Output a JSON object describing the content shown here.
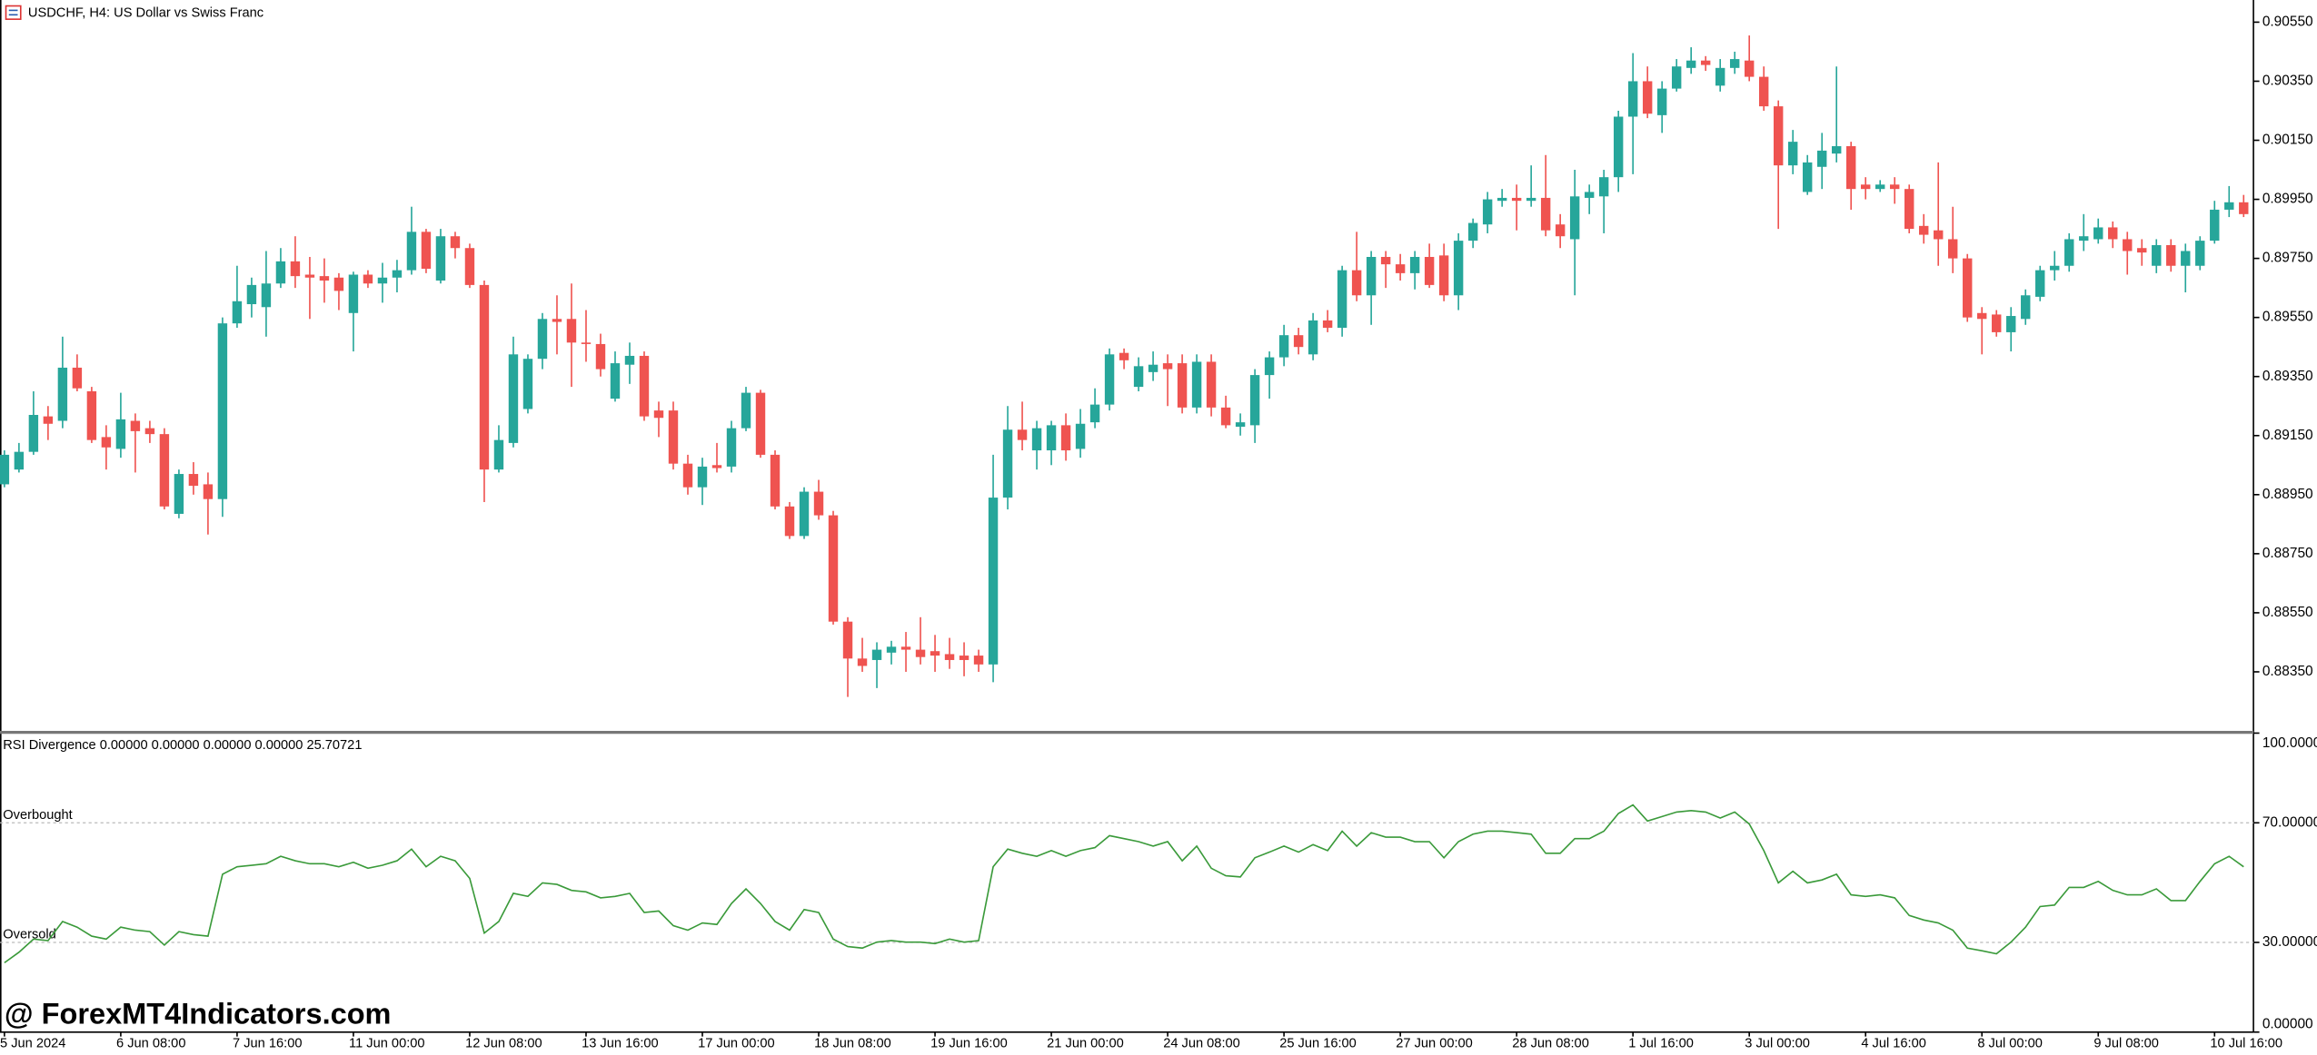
{
  "watermark": "@ ForexMT4Indicators.com",
  "chart_data": [
    {
      "type": "candlestick",
      "title": "USDCHF, H4:  US Dollar vs Swiss Franc",
      "categories": [
        "5 Jun 2024",
        null,
        null,
        null,
        null,
        null,
        null,
        null,
        "6 Jun 08:00",
        null,
        null,
        null,
        null,
        null,
        null,
        null,
        "7 Jun 16:00",
        null,
        null,
        null,
        null,
        null,
        null,
        null,
        "11 Jun 00:00",
        null,
        null,
        null,
        null,
        null,
        null,
        null,
        "12 Jun 08:00",
        null,
        null,
        null,
        null,
        null,
        null,
        null,
        "13 Jun 16:00",
        null,
        null,
        null,
        null,
        null,
        null,
        null,
        "17 Jun 00:00",
        null,
        null,
        null,
        null,
        null,
        null,
        null,
        "18 Jun 08:00",
        null,
        null,
        null,
        null,
        null,
        null,
        null,
        "19 Jun 16:00",
        null,
        null,
        null,
        null,
        null,
        null,
        null,
        "21 Jun 00:00",
        null,
        null,
        null,
        null,
        null,
        null,
        null,
        "24 Jun 08:00",
        null,
        null,
        null,
        null,
        null,
        null,
        null,
        "25 Jun 16:00",
        null,
        null,
        null,
        null,
        null,
        null,
        null,
        "27 Jun 00:00",
        null,
        null,
        null,
        null,
        null,
        null,
        null,
        "28 Jun 08:00",
        null,
        null,
        null,
        null,
        null,
        null,
        null,
        "1 Jul 16:00",
        null,
        null,
        null,
        null,
        null,
        null,
        null,
        "3 Jul 00:00",
        null,
        null,
        null,
        null,
        null,
        null,
        null,
        "4 Jul 16:00",
        null,
        null,
        null,
        null,
        null,
        null,
        null,
        "8 Jul 00:00",
        null,
        null,
        null,
        null,
        null,
        null,
        null,
        "9 Jul 08:00",
        null,
        null,
        null,
        null,
        null,
        null,
        null,
        "10 Jul 16:00",
        null,
        null
      ],
      "open": [
        0.88985,
        0.89035,
        0.89095,
        0.89215,
        0.892,
        0.8938,
        0.893,
        0.89145,
        0.89105,
        0.892,
        0.89175,
        0.89155,
        0.88885,
        0.8902,
        0.88985,
        0.88935,
        0.8953,
        0.89595,
        0.89585,
        0.89665,
        0.8974,
        0.89695,
        0.8969,
        0.89685,
        0.89565,
        0.89695,
        0.89665,
        0.89685,
        0.8971,
        0.8984,
        0.89675,
        0.89825,
        0.89785,
        0.8966,
        0.89035,
        0.89125,
        0.8924,
        0.8941,
        0.89545,
        0.89545,
        0.89465,
        0.8946,
        0.89275,
        0.8939,
        0.8942,
        0.89235,
        0.89235,
        0.89055,
        0.88975,
        0.8905,
        0.89045,
        0.89175,
        0.89295,
        0.89085,
        0.8891,
        0.8881,
        0.8896,
        0.8888,
        0.8852,
        0.88395,
        0.8839,
        0.88415,
        0.88435,
        0.88425,
        0.8842,
        0.8841,
        0.88405,
        0.88405,
        0.88375,
        0.8894,
        0.8917,
        0.891,
        0.891,
        0.89185,
        0.89105,
        0.89195,
        0.89255,
        0.8943,
        0.89315,
        0.89365,
        0.89395,
        0.89395,
        0.89245,
        0.894,
        0.89245,
        0.8918,
        0.89185,
        0.89355,
        0.89415,
        0.8949,
        0.89425,
        0.8954,
        0.89515,
        0.8971,
        0.89625,
        0.89755,
        0.8973,
        0.897,
        0.89755,
        0.8976,
        0.89625,
        0.8981,
        0.89865,
        0.89945,
        0.89955,
        0.89945,
        0.89955,
        0.89865,
        0.89815,
        0.89955,
        0.8996,
        0.90025,
        0.9023,
        0.9035,
        0.90235,
        0.90325,
        0.90395,
        0.9042,
        0.90335,
        0.90395,
        0.9042,
        0.90365,
        0.90265,
        0.90065,
        0.89975,
        0.9006,
        0.90105,
        0.9013,
        0.9,
        0.89985,
        0.9,
        0.89985,
        0.8986,
        0.89845,
        0.89815,
        0.8975,
        0.89565,
        0.8956,
        0.895,
        0.89545,
        0.8962,
        0.8971,
        0.89725,
        0.8981,
        0.89815,
        0.89855,
        0.89815,
        0.89785,
        0.89725,
        0.89795,
        0.89725,
        0.89725,
        0.8981,
        0.89915,
        0.8994
      ],
      "high": [
        0.891,
        0.89125,
        0.893,
        0.8925,
        0.89485,
        0.89425,
        0.89315,
        0.89185,
        0.89295,
        0.89225,
        0.892,
        0.89175,
        0.89035,
        0.8906,
        0.89025,
        0.8955,
        0.89725,
        0.89685,
        0.89775,
        0.89785,
        0.89825,
        0.89755,
        0.8975,
        0.897,
        0.89705,
        0.8971,
        0.89735,
        0.89745,
        0.89925,
        0.8985,
        0.8985,
        0.8984,
        0.898,
        0.89675,
        0.89185,
        0.89485,
        0.89425,
        0.89565,
        0.89625,
        0.89665,
        0.89575,
        0.89495,
        0.89435,
        0.89465,
        0.89435,
        0.89265,
        0.89265,
        0.89085,
        0.89075,
        0.89125,
        0.892,
        0.89315,
        0.89305,
        0.891,
        0.88925,
        0.88975,
        0.89,
        0.88895,
        0.88535,
        0.88465,
        0.8845,
        0.88455,
        0.88485,
        0.88535,
        0.88475,
        0.88465,
        0.8845,
        0.88425,
        0.89085,
        0.8925,
        0.89265,
        0.892,
        0.892,
        0.89225,
        0.8924,
        0.8931,
        0.89445,
        0.89445,
        0.89415,
        0.89435,
        0.89425,
        0.89425,
        0.89425,
        0.89425,
        0.89285,
        0.89225,
        0.89375,
        0.89435,
        0.89525,
        0.89515,
        0.89565,
        0.89575,
        0.89725,
        0.8984,
        0.89775,
        0.89775,
        0.89765,
        0.89775,
        0.898,
        0.898,
        0.89835,
        0.89885,
        0.89975,
        0.89985,
        0.9,
        0.90065,
        0.901,
        0.899,
        0.9005,
        0.9,
        0.9005,
        0.9025,
        0.90445,
        0.904,
        0.9035,
        0.90425,
        0.90465,
        0.90435,
        0.90425,
        0.9045,
        0.90505,
        0.904,
        0.90285,
        0.90185,
        0.901,
        0.90175,
        0.904,
        0.90145,
        0.90025,
        0.90015,
        0.90025,
        0.9,
        0.899,
        0.90075,
        0.89925,
        0.89765,
        0.89585,
        0.89575,
        0.89585,
        0.89645,
        0.89725,
        0.89775,
        0.89835,
        0.899,
        0.89885,
        0.89875,
        0.8984,
        0.89815,
        0.89815,
        0.89815,
        0.898,
        0.89825,
        0.89945,
        0.89995,
        0.89965
      ],
      "low": [
        0.88975,
        0.89025,
        0.89085,
        0.89135,
        0.89175,
        0.893,
        0.89125,
        0.89035,
        0.89075,
        0.89025,
        0.89125,
        0.889,
        0.8887,
        0.8895,
        0.88815,
        0.88875,
        0.89515,
        0.8955,
        0.89485,
        0.8965,
        0.8965,
        0.89545,
        0.896,
        0.89575,
        0.89435,
        0.8965,
        0.896,
        0.89635,
        0.89695,
        0.897,
        0.89665,
        0.8975,
        0.8965,
        0.88925,
        0.89025,
        0.8911,
        0.89225,
        0.89375,
        0.89425,
        0.89315,
        0.894,
        0.8935,
        0.89265,
        0.89325,
        0.892,
        0.89145,
        0.89035,
        0.8895,
        0.88915,
        0.89025,
        0.89025,
        0.89165,
        0.89075,
        0.889,
        0.888,
        0.888,
        0.88865,
        0.8851,
        0.88265,
        0.8835,
        0.88295,
        0.88375,
        0.8835,
        0.88375,
        0.8835,
        0.8836,
        0.88335,
        0.8835,
        0.88315,
        0.889,
        0.891,
        0.89035,
        0.8905,
        0.89065,
        0.89075,
        0.89175,
        0.89235,
        0.89375,
        0.893,
        0.89335,
        0.8925,
        0.89225,
        0.89225,
        0.89215,
        0.89175,
        0.8915,
        0.89125,
        0.89275,
        0.89385,
        0.89425,
        0.89405,
        0.895,
        0.89485,
        0.89605,
        0.89525,
        0.8965,
        0.89675,
        0.89645,
        0.8965,
        0.89605,
        0.89575,
        0.89785,
        0.89835,
        0.89925,
        0.89845,
        0.89925,
        0.89825,
        0.89785,
        0.89625,
        0.899,
        0.89835,
        0.89975,
        0.90035,
        0.90225,
        0.90175,
        0.90315,
        0.90375,
        0.90385,
        0.90315,
        0.90375,
        0.9035,
        0.9025,
        0.8985,
        0.90035,
        0.89965,
        0.89985,
        0.90075,
        0.89915,
        0.8995,
        0.89975,
        0.89935,
        0.89835,
        0.898,
        0.89725,
        0.897,
        0.89535,
        0.89425,
        0.89485,
        0.89435,
        0.89525,
        0.89605,
        0.89675,
        0.89705,
        0.89775,
        0.898,
        0.89785,
        0.89695,
        0.89725,
        0.897,
        0.89705,
        0.89635,
        0.8971,
        0.898,
        0.8989,
        0.8989
      ],
      "close": [
        0.89085,
        0.89095,
        0.8922,
        0.8919,
        0.8938,
        0.8931,
        0.89135,
        0.8911,
        0.89205,
        0.89165,
        0.89155,
        0.8891,
        0.8902,
        0.8898,
        0.88935,
        0.8953,
        0.89605,
        0.8966,
        0.89665,
        0.8974,
        0.8969,
        0.89685,
        0.89675,
        0.8964,
        0.89695,
        0.89665,
        0.89685,
        0.8971,
        0.8984,
        0.89715,
        0.89825,
        0.89785,
        0.8966,
        0.89035,
        0.89135,
        0.89425,
        0.8941,
        0.89545,
        0.89535,
        0.89465,
        0.8946,
        0.89375,
        0.89395,
        0.8942,
        0.89215,
        0.8921,
        0.89055,
        0.88975,
        0.89045,
        0.8904,
        0.89175,
        0.89295,
        0.89085,
        0.8891,
        0.8881,
        0.8896,
        0.8888,
        0.8852,
        0.88395,
        0.8837,
        0.88425,
        0.88435,
        0.88425,
        0.884,
        0.88405,
        0.8839,
        0.8839,
        0.88375,
        0.8894,
        0.8917,
        0.89135,
        0.89175,
        0.89185,
        0.891,
        0.8919,
        0.89255,
        0.89425,
        0.89405,
        0.89385,
        0.8939,
        0.89375,
        0.89245,
        0.894,
        0.89245,
        0.89185,
        0.89195,
        0.89355,
        0.89415,
        0.8949,
        0.8945,
        0.8954,
        0.89515,
        0.8971,
        0.89625,
        0.89755,
        0.8973,
        0.897,
        0.89755,
        0.8966,
        0.89625,
        0.8981,
        0.8987,
        0.8995,
        0.89955,
        0.89945,
        0.89955,
        0.89845,
        0.89825,
        0.8996,
        0.89975,
        0.90025,
        0.9023,
        0.9035,
        0.9024,
        0.90325,
        0.904,
        0.9042,
        0.90405,
        0.90395,
        0.90425,
        0.90365,
        0.90265,
        0.90065,
        0.90145,
        0.90075,
        0.90115,
        0.9013,
        0.89985,
        0.89985,
        0.9,
        0.89985,
        0.8985,
        0.8983,
        0.89815,
        0.8975,
        0.8955,
        0.89545,
        0.895,
        0.89555,
        0.89625,
        0.8971,
        0.89725,
        0.89815,
        0.89825,
        0.89855,
        0.89815,
        0.89775,
        0.8977,
        0.89795,
        0.89725,
        0.89775,
        0.8981,
        0.89915,
        0.8994,
        0.899
      ],
      "up_color": "#26a69a",
      "down_color": "#ef5350",
      "ylim": [
        0.8815,
        0.90625
      ],
      "yticks": [
        {
          "value": 0.8835,
          "label": "0.88350"
        },
        {
          "value": 0.8855,
          "label": "0.88550"
        },
        {
          "value": 0.8875,
          "label": "0.88750"
        },
        {
          "value": 0.8895,
          "label": "0.88950"
        },
        {
          "value": 0.8915,
          "label": "0.89150"
        },
        {
          "value": 0.8935,
          "label": "0.89350"
        },
        {
          "value": 0.8955,
          "label": "0.89550"
        },
        {
          "value": 0.8975,
          "label": "0.89750"
        },
        {
          "value": 0.8995,
          "label": "0.89950"
        },
        {
          "value": 0.9015,
          "label": "0.90150"
        },
        {
          "value": 0.9035,
          "label": "0.90350"
        },
        {
          "value": 0.9055,
          "label": "0.90550"
        }
      ]
    },
    {
      "type": "line",
      "title": "RSI Divergence 0.00000 0.00000 0.00000 0.00000 25.70721",
      "color": "#3a9a3a",
      "values": [
        23.2,
        26.7,
        31.1,
        30.6,
        37.0,
        35.1,
        32.1,
        31.1,
        35.1,
        34.1,
        33.6,
        29.1,
        33.6,
        32.6,
        32.1,
        52.8,
        55.3,
        55.8,
        56.3,
        58.8,
        57.3,
        56.3,
        56.3,
        55.3,
        56.8,
        54.8,
        55.8,
        57.3,
        61.2,
        55.3,
        58.8,
        57.3,
        51.4,
        33.1,
        37.0,
        46.4,
        45.4,
        49.9,
        49.4,
        47.4,
        46.9,
        44.9,
        45.4,
        46.4,
        40.0,
        40.5,
        35.6,
        34.1,
        36.5,
        36.0,
        43.0,
        47.9,
        43.0,
        37.0,
        34.1,
        41.0,
        40.0,
        31.1,
        28.6,
        28.1,
        30.1,
        30.6,
        30.1,
        30.1,
        29.6,
        31.1,
        30.1,
        30.6,
        55.3,
        61.2,
        59.8,
        58.8,
        60.7,
        58.8,
        60.7,
        61.7,
        65.7,
        64.7,
        63.7,
        62.2,
        63.7,
        57.3,
        62.2,
        54.8,
        52.3,
        51.9,
        58.3,
        60.2,
        62.2,
        60.2,
        62.7,
        60.7,
        67.2,
        62.2,
        66.7,
        65.2,
        65.2,
        63.7,
        63.7,
        58.3,
        63.7,
        66.2,
        67.2,
        67.2,
        66.7,
        66.2,
        59.8,
        59.8,
        64.7,
        64.7,
        67.2,
        73.1,
        76.0,
        70.6,
        72.1,
        73.6,
        74.1,
        73.6,
        71.6,
        73.6,
        69.6,
        60.7,
        49.9,
        53.8,
        49.9,
        50.9,
        52.8,
        45.9,
        45.4,
        45.9,
        44.9,
        39.0,
        37.5,
        36.5,
        34.1,
        28.1,
        27.2,
        26.2,
        30.1,
        35.1,
        42.0,
        42.5,
        48.4,
        48.4,
        50.4,
        47.4,
        45.9,
        45.9,
        47.9,
        44.0,
        44.0,
        50.4,
        56.3,
        58.8,
        55.3
      ],
      "ylim": [
        0,
        100
      ],
      "yticks": [
        {
          "value": 0,
          "label": "0.00000"
        },
        {
          "value": 30,
          "label": "30.00000"
        },
        {
          "value": 70,
          "label": "70.00000"
        },
        {
          "value": 100,
          "label": "100.00000"
        }
      ],
      "levels": [
        {
          "value": 70,
          "label": "Overbought"
        },
        {
          "value": 30,
          "label": "Oversold"
        }
      ]
    }
  ]
}
